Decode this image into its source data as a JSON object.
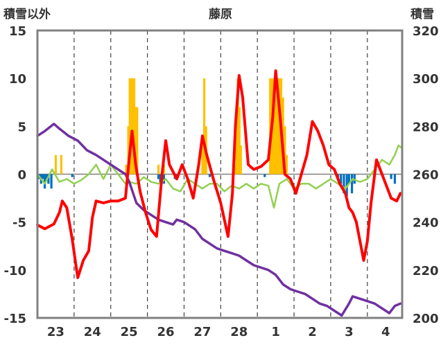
{
  "chart_data": {
    "type": "line",
    "title": "藤原",
    "ylabel_left": "積雪以外",
    "ylabel_right": "積雪",
    "x_categories": [
      "23",
      "24",
      "25",
      "26",
      "27",
      "28",
      "1",
      "2",
      "3",
      "4"
    ],
    "y_left_range": [
      -15,
      15
    ],
    "y_left_ticks": [
      "15",
      "10",
      "5",
      "0",
      "-5",
      "-10",
      "-15"
    ],
    "y_right_range": [
      200,
      320
    ],
    "y_right_ticks": [
      "320",
      "300",
      "280",
      "260",
      "240",
      "220",
      "200"
    ],
    "grid": "vertical dashed day separators",
    "colors": {
      "temperature": "#ff0000",
      "snow_depth": "#7030a0",
      "wind_or_other": "#92d050",
      "precip_positive": "#ffc000",
      "precip_negative": "#0070c0",
      "axis": "#808080"
    },
    "series": [
      {
        "key": "temperature",
        "axis": "left",
        "points": [
          [
            -0.5,
            -5.3
          ],
          [
            -0.3,
            -5.7
          ],
          [
            -0.05,
            -5.2
          ],
          [
            0.1,
            -4.0
          ],
          [
            0.18,
            -2.8
          ],
          [
            0.3,
            -3.5
          ],
          [
            0.45,
            -6.8
          ],
          [
            0.55,
            -9.5
          ],
          [
            0.6,
            -10.8
          ],
          [
            0.75,
            -9.0
          ],
          [
            0.9,
            -8.0
          ],
          [
            1.0,
            -4.5
          ],
          [
            1.1,
            -2.8
          ],
          [
            1.3,
            -3.0
          ],
          [
            1.5,
            -2.8
          ],
          [
            1.7,
            -2.8
          ],
          [
            1.9,
            -2.5
          ],
          [
            2.0,
            1.5
          ],
          [
            2.08,
            4.5
          ],
          [
            2.18,
            1.0
          ],
          [
            2.3,
            -1.8
          ],
          [
            2.45,
            -4.0
          ],
          [
            2.6,
            -5.8
          ],
          [
            2.75,
            -6.5
          ],
          [
            2.9,
            0.0
          ],
          [
            3.0,
            3.5
          ],
          [
            3.1,
            1.0
          ],
          [
            3.3,
            -0.5
          ],
          [
            3.45,
            1.0
          ],
          [
            3.6,
            -0.5
          ],
          [
            3.75,
            -2.5
          ],
          [
            3.9,
            1.0
          ],
          [
            4.0,
            4.0
          ],
          [
            4.12,
            2.0
          ],
          [
            4.3,
            -0.5
          ],
          [
            4.5,
            -3.0
          ],
          [
            4.7,
            -6.5
          ],
          [
            4.82,
            -2.0
          ],
          [
            4.9,
            5.0
          ],
          [
            5.0,
            10.3
          ],
          [
            5.1,
            8.0
          ],
          [
            5.25,
            1.0
          ],
          [
            5.4,
            0.5
          ],
          [
            5.6,
            0.8
          ],
          [
            5.8,
            1.5
          ],
          [
            5.92,
            6.0
          ],
          [
            6.0,
            10.8
          ],
          [
            6.12,
            6.0
          ],
          [
            6.25,
            0.0
          ],
          [
            6.4,
            -0.5
          ],
          [
            6.55,
            -2.0
          ],
          [
            6.7,
            0.0
          ],
          [
            6.85,
            2.0
          ],
          [
            7.0,
            5.5
          ],
          [
            7.15,
            4.5
          ],
          [
            7.3,
            3.0
          ],
          [
            7.45,
            1.0
          ],
          [
            7.6,
            0.5
          ],
          [
            7.75,
            -1.0
          ],
          [
            7.9,
            -2.0
          ],
          [
            8.0,
            -3.5
          ],
          [
            8.1,
            -4.0
          ],
          [
            8.2,
            -5.0
          ],
          [
            8.3,
            -7.0
          ],
          [
            8.4,
            -9.0
          ],
          [
            8.5,
            -7.0
          ],
          [
            8.6,
            -3.0
          ],
          [
            8.75,
            1.5
          ],
          [
            8.9,
            0.0
          ],
          [
            9.0,
            -1.0
          ],
          [
            9.15,
            -2.5
          ],
          [
            9.3,
            -2.8
          ],
          [
            9.4,
            -2.0
          ]
        ]
      },
      {
        "key": "snow_depth",
        "axis": "right",
        "points": [
          [
            -0.5,
            276
          ],
          [
            -0.3,
            278
          ],
          [
            -0.05,
            281
          ],
          [
            0.1,
            279
          ],
          [
            0.35,
            276
          ],
          [
            0.6,
            274
          ],
          [
            0.85,
            270
          ],
          [
            1.1,
            268
          ],
          [
            1.4,
            265
          ],
          [
            1.7,
            262
          ],
          [
            1.9,
            260
          ],
          [
            2.0,
            257
          ],
          [
            2.2,
            248
          ],
          [
            2.4,
            245
          ],
          [
            2.6,
            243
          ],
          [
            2.8,
            241
          ],
          [
            3.0,
            240
          ],
          [
            3.2,
            239
          ],
          [
            3.3,
            241
          ],
          [
            3.5,
            240
          ],
          [
            3.8,
            237
          ],
          [
            4.0,
            233
          ],
          [
            4.2,
            231
          ],
          [
            4.4,
            229
          ],
          [
            4.6,
            228
          ],
          [
            4.8,
            227
          ],
          [
            5.0,
            226
          ],
          [
            5.2,
            224
          ],
          [
            5.4,
            222
          ],
          [
            5.6,
            221
          ],
          [
            5.8,
            220
          ],
          [
            6.0,
            218
          ],
          [
            6.2,
            214
          ],
          [
            6.4,
            212
          ],
          [
            6.6,
            211
          ],
          [
            6.8,
            210
          ],
          [
            7.0,
            208
          ],
          [
            7.2,
            206
          ],
          [
            7.4,
            205
          ],
          [
            7.6,
            203
          ],
          [
            7.8,
            201
          ],
          [
            8.0,
            206
          ],
          [
            8.1,
            209
          ],
          [
            8.3,
            208
          ],
          [
            8.5,
            207
          ],
          [
            8.7,
            206
          ],
          [
            8.9,
            204
          ],
          [
            9.1,
            202
          ],
          [
            9.25,
            205
          ],
          [
            9.4,
            206
          ]
        ]
      },
      {
        "key": "wind_or_other",
        "axis": "left",
        "points": [
          [
            -0.5,
            0.0
          ],
          [
            -0.3,
            -1.0
          ],
          [
            -0.1,
            0.5
          ],
          [
            0.1,
            -0.8
          ],
          [
            0.3,
            -0.5
          ],
          [
            0.5,
            -1.0
          ],
          [
            0.7,
            -0.6
          ],
          [
            0.9,
            0.0
          ],
          [
            1.1,
            1.0
          ],
          [
            1.3,
            -0.5
          ],
          [
            1.5,
            1.0
          ],
          [
            1.7,
            0.0
          ],
          [
            1.9,
            -1.0
          ],
          [
            2.0,
            -0.8
          ],
          [
            2.2,
            -1.0
          ],
          [
            2.4,
            -0.3
          ],
          [
            2.6,
            -0.8
          ],
          [
            2.8,
            -1.0
          ],
          [
            3.0,
            -0.5
          ],
          [
            3.2,
            -1.5
          ],
          [
            3.4,
            -1.8
          ],
          [
            3.6,
            -0.5
          ],
          [
            3.8,
            -1.0
          ],
          [
            4.0,
            -1.5
          ],
          [
            4.2,
            -1.0
          ],
          [
            4.4,
            -1.0
          ],
          [
            4.6,
            -1.8
          ],
          [
            4.8,
            -1.2
          ],
          [
            5.0,
            -1.5
          ],
          [
            5.2,
            -1.0
          ],
          [
            5.4,
            -1.5
          ],
          [
            5.6,
            -1.0
          ],
          [
            5.8,
            -1.2
          ],
          [
            5.95,
            -3.5
          ],
          [
            6.1,
            -1.0
          ],
          [
            6.3,
            -0.5
          ],
          [
            6.5,
            -1.5
          ],
          [
            6.7,
            -1.0
          ],
          [
            6.9,
            -1.0
          ],
          [
            7.1,
            -1.5
          ],
          [
            7.3,
            -1.0
          ],
          [
            7.5,
            -0.5
          ],
          [
            7.7,
            -1.0
          ],
          [
            7.9,
            -1.5
          ],
          [
            8.1,
            -0.5
          ],
          [
            8.3,
            -0.8
          ],
          [
            8.5,
            -0.5
          ],
          [
            8.7,
            0.5
          ],
          [
            8.9,
            1.5
          ],
          [
            9.1,
            1.0
          ],
          [
            9.25,
            2.0
          ],
          [
            9.35,
            3.0
          ],
          [
            9.42,
            2.8
          ]
        ]
      }
    ],
    "bars": {
      "axis": "left",
      "positive": [
        [
          0.0,
          2.0
        ],
        [
          0.15,
          2.0
        ],
        [
          1.92,
          1.0
        ],
        [
          1.98,
          5.0
        ],
        [
          2.02,
          10.0
        ],
        [
          2.06,
          10.0
        ],
        [
          2.1,
          10.0
        ],
        [
          2.14,
          10.0
        ],
        [
          2.18,
          7.0
        ],
        [
          2.22,
          7.0
        ],
        [
          2.8,
          1.0
        ],
        [
          2.95,
          1.0
        ],
        [
          4.0,
          4.0
        ],
        [
          4.05,
          10.0
        ],
        [
          4.1,
          5.0
        ],
        [
          4.9,
          1.0
        ],
        [
          4.93,
          6.0
        ],
        [
          4.97,
          10.0
        ],
        [
          5.01,
          7.0
        ],
        [
          5.05,
          3.0
        ],
        [
          5.85,
          10.0
        ],
        [
          5.9,
          10.0
        ],
        [
          5.95,
          10.0
        ],
        [
          6.0,
          10.0
        ],
        [
          6.05,
          10.0
        ],
        [
          6.1,
          10.0
        ],
        [
          6.15,
          10.0
        ],
        [
          6.2,
          8.0
        ],
        [
          6.25,
          5.0
        ],
        [
          6.3,
          2.0
        ]
      ],
      "negative": [
        [
          -0.45,
          -0.5
        ],
        [
          -0.4,
          -1.0
        ],
        [
          -0.35,
          -0.5
        ],
        [
          -0.3,
          -1.5
        ],
        [
          -0.25,
          -0.5
        ],
        [
          -0.2,
          -1.0
        ],
        [
          -0.12,
          -1.5
        ],
        [
          0.45,
          -0.3
        ],
        [
          2.8,
          -0.5
        ],
        [
          2.85,
          -1.0
        ],
        [
          2.9,
          -0.5
        ],
        [
          2.95,
          -1.0
        ],
        [
          3.25,
          -0.5
        ],
        [
          3.3,
          -0.5
        ],
        [
          4.2,
          -0.3
        ],
        [
          5.7,
          -0.3
        ],
        [
          7.7,
          -0.5
        ],
        [
          7.78,
          -1.0
        ],
        [
          7.86,
          -2.0
        ],
        [
          7.94,
          -2.3
        ],
        [
          8.0,
          -1.0
        ],
        [
          8.08,
          -2.0
        ],
        [
          8.15,
          -1.0
        ],
        [
          9.15,
          -0.5
        ],
        [
          9.25,
          -1.0
        ]
      ]
    }
  }
}
